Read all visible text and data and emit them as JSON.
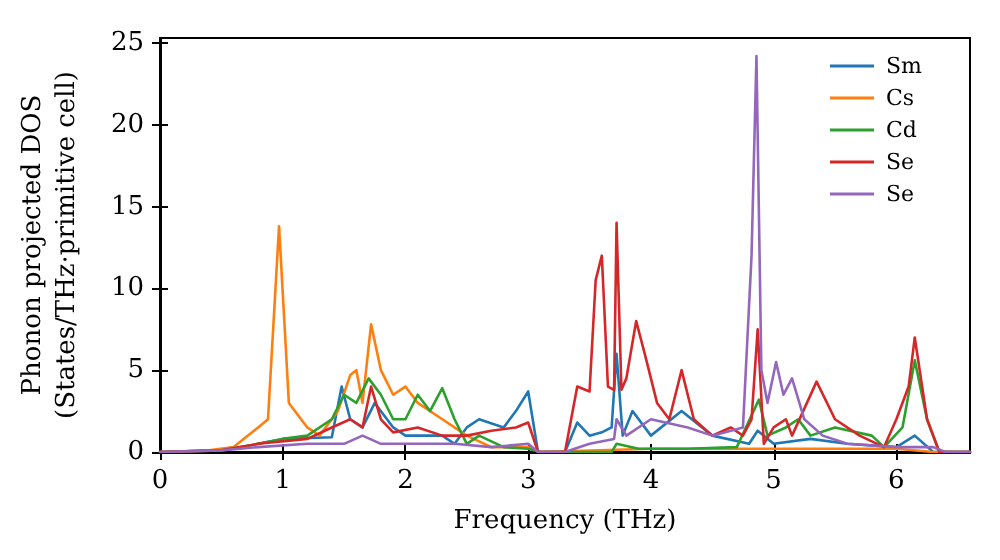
{
  "chart_data": {
    "type": "line",
    "xlabel": "Frequency (THz)",
    "ylabel": "Phonon projected DOS\n(States/THz·primitive cell)",
    "xlim": [
      0,
      6.6
    ],
    "xticks": [
      0,
      1,
      2,
      3,
      4,
      5,
      6
    ],
    "ylim": [
      0,
      25.3
    ],
    "yticks": [
      0,
      5,
      10,
      15,
      20,
      25
    ],
    "grid": false,
    "legend": "top right",
    "marker": "none",
    "line_style": "solid",
    "series": [
      {
        "name": "Sm",
        "color": "#1f77b4",
        "x": [
          0.8,
          1.0,
          1.4,
          1.48,
          1.55,
          1.65,
          1.75,
          1.9,
          2.0,
          2.3,
          2.4,
          2.5,
          2.6,
          2.8,
          2.9,
          3.0,
          3.08,
          3.3,
          3.4,
          3.5,
          3.6,
          3.68,
          3.72,
          3.77,
          3.85,
          4.0,
          4.25,
          4.5,
          4.8,
          4.87,
          5.0,
          5.3,
          5.6,
          6.0,
          6.15,
          6.3,
          6.6
        ],
        "values": [
          0.5,
          0.8,
          0.9,
          4.0,
          2.0,
          1.5,
          3.0,
          1.5,
          1.0,
          1.0,
          0.5,
          1.5,
          2.0,
          1.5,
          2.5,
          3.7,
          0,
          0,
          1.8,
          1.0,
          1.2,
          1.5,
          6.0,
          1.0,
          2.5,
          1.0,
          2.5,
          1.0,
          0.5,
          1.3,
          0.5,
          0.8,
          0.5,
          0.3,
          1.0,
          0,
          0
        ]
      },
      {
        "name": "Cs",
        "color": "#ff7f0e",
        "x": [
          0,
          0.4,
          0.6,
          0.8,
          0.88,
          0.97,
          1.05,
          1.2,
          1.3,
          1.45,
          1.55,
          1.6,
          1.65,
          1.72,
          1.8,
          1.9,
          2.0,
          2.1,
          2.3,
          2.5,
          2.7,
          3.0,
          3.1,
          4.0,
          5.0,
          6.0,
          6.3,
          6.6
        ],
        "values": [
          0,
          0.1,
          0.3,
          1.5,
          2.0,
          13.8,
          3.0,
          1.5,
          1.0,
          2.5,
          4.7,
          5.0,
          3.0,
          7.8,
          5.0,
          3.5,
          4.0,
          3.0,
          2.0,
          1.0,
          0.3,
          0.3,
          0,
          0.2,
          0.2,
          0.2,
          0,
          0
        ]
      },
      {
        "name": "Cd",
        "color": "#2ca02c",
        "x": [
          0,
          0.5,
          0.8,
          1.0,
          1.2,
          1.4,
          1.5,
          1.6,
          1.7,
          1.8,
          1.9,
          2.0,
          2.1,
          2.2,
          2.3,
          2.4,
          2.5,
          2.6,
          2.8,
          3.0,
          3.1,
          3.68,
          3.72,
          3.9,
          4.3,
          4.7,
          4.88,
          4.95,
          5.1,
          5.2,
          5.3,
          5.5,
          5.8,
          5.9,
          6.05,
          6.15,
          6.25,
          6.35,
          6.6
        ],
        "values": [
          0,
          0.1,
          0.5,
          0.8,
          1.0,
          2.0,
          3.5,
          3.0,
          4.5,
          3.5,
          2.0,
          2.0,
          3.5,
          2.5,
          3.9,
          2.0,
          0.5,
          1.0,
          0.3,
          0.2,
          0,
          0,
          0.5,
          0.2,
          0.2,
          0.3,
          3.2,
          1.0,
          1.5,
          2.0,
          1.0,
          1.5,
          1.0,
          0.3,
          1.5,
          5.6,
          2.0,
          0,
          0
        ]
      },
      {
        "name": "Se",
        "color": "#d62728",
        "x": [
          0,
          0.5,
          0.8,
          1.2,
          1.4,
          1.55,
          1.65,
          1.72,
          1.8,
          1.9,
          2.1,
          2.3,
          2.5,
          2.7,
          2.9,
          3.0,
          3.08,
          3.3,
          3.4,
          3.5,
          3.55,
          3.6,
          3.65,
          3.7,
          3.72,
          3.76,
          3.8,
          3.88,
          3.95,
          4.05,
          4.15,
          4.25,
          4.35,
          4.5,
          4.65,
          4.75,
          4.82,
          4.87,
          4.92,
          5.0,
          5.1,
          5.15,
          5.35,
          5.5,
          5.7,
          5.9,
          6.0,
          6.1,
          6.15,
          6.25,
          6.35,
          6.6
        ],
        "values": [
          0,
          0.1,
          0.5,
          0.8,
          1.5,
          2.0,
          1.5,
          4.0,
          2.0,
          1.2,
          1.5,
          1.0,
          1.0,
          1.3,
          1.5,
          1.8,
          0,
          0,
          4.0,
          3.7,
          10.5,
          12.0,
          4.0,
          3.8,
          14.0,
          3.8,
          4.5,
          8.0,
          6.0,
          3.0,
          2.0,
          5.0,
          2.0,
          1.0,
          1.5,
          1.0,
          2.0,
          7.5,
          0.5,
          1.5,
          2.0,
          1.0,
          4.3,
          2.0,
          1.0,
          0.3,
          2.0,
          4.0,
          7.0,
          2.0,
          0,
          0
        ]
      },
      {
        "name": "Se",
        "color": "#9467bd",
        "x": [
          0,
          0.5,
          0.8,
          1.2,
          1.5,
          1.65,
          1.8,
          2.1,
          2.4,
          2.7,
          3.0,
          3.08,
          3.3,
          3.5,
          3.7,
          3.72,
          3.8,
          4.0,
          4.3,
          4.5,
          4.75,
          4.82,
          4.86,
          4.9,
          4.95,
          5.02,
          5.08,
          5.15,
          5.25,
          5.4,
          5.6,
          6.0,
          6.3,
          6.4,
          6.6
        ],
        "values": [
          0,
          0.1,
          0.3,
          0.5,
          0.5,
          1.0,
          0.5,
          0.5,
          0.5,
          0.3,
          0.5,
          0,
          0,
          0.5,
          0.8,
          2.0,
          1.0,
          2.0,
          1.5,
          1.0,
          1.5,
          12.0,
          24.2,
          5.0,
          3.0,
          5.5,
          3.5,
          4.5,
          2.0,
          1.0,
          0.5,
          0.3,
          0.3,
          0,
          0
        ]
      }
    ]
  }
}
